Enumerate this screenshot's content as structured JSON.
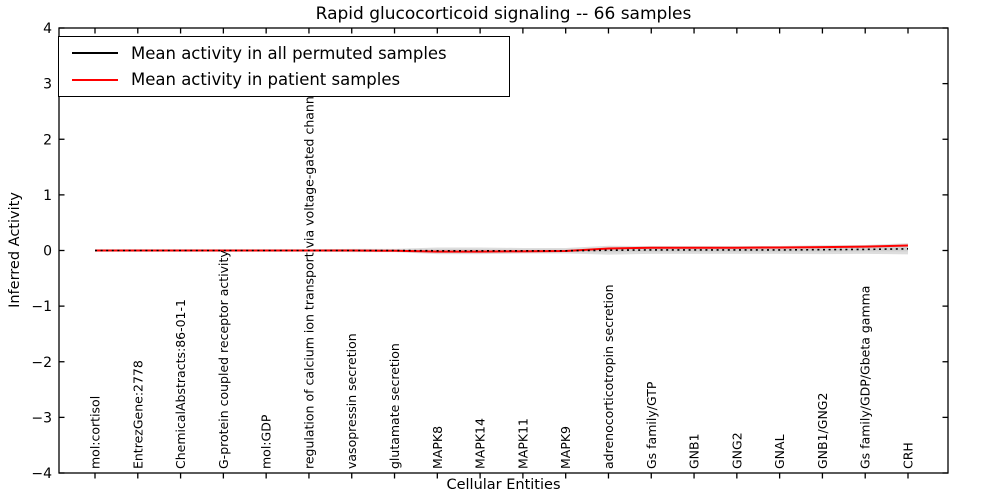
{
  "chart_data": {
    "type": "line",
    "title": "Rapid glucocorticoid signaling -- 66 samples",
    "xlabel": "Cellular Entities",
    "ylabel": "Inferred Activity",
    "ylim": [
      -4,
      4
    ],
    "yticks": [
      4,
      3,
      2,
      1,
      0,
      -1,
      -2,
      -3,
      -4
    ],
    "grid": false,
    "legend_position": "upper left",
    "categories": [
      "mol:cortisol",
      "EntrezGene:2778",
      "ChemicalAbstracts:86-01-1",
      "G-protein coupled receptor activity",
      "mol:GDP",
      "regulation of calcium ion transport via voltage-gated channel",
      "vasopressin secretion",
      "glutamate secretion",
      "MAPK8",
      "MAPK14",
      "MAPK11",
      "MAPK9",
      "adrenocorticotropin secretion",
      "Gs family/GTP",
      "GNB1",
      "GNG2",
      "GNAL",
      "GNB1/GNG2",
      "Gs family/GDP/Gbeta gamma",
      "CRH"
    ],
    "series": [
      {
        "name": "Mean activity in all permuted samples",
        "color": "#000000",
        "linestyle": "dotted",
        "values": [
          0,
          0,
          0,
          0,
          0,
          0,
          0,
          0,
          -0.005,
          -0.005,
          -0.005,
          -0.005,
          0.005,
          0.01,
          0.01,
          0.01,
          0.01,
          0.015,
          0.02,
          0.03
        ]
      },
      {
        "name": "Mean activity in patient samples",
        "color": "#ff0000",
        "linestyle": "solid",
        "values": [
          0,
          0,
          0,
          0,
          0,
          0,
          0,
          -0.005,
          -0.02,
          -0.02,
          -0.015,
          -0.01,
          0.035,
          0.05,
          0.05,
          0.05,
          0.055,
          0.06,
          0.07,
          0.09
        ]
      }
    ],
    "band": {
      "color": "#d9d9d9",
      "half_widths": [
        0.02,
        0.02,
        0.02,
        0.02,
        0.02,
        0.02,
        0.03,
        0.03,
        0.06,
        0.06,
        0.05,
        0.05,
        0.08,
        0.07,
        0.07,
        0.07,
        0.07,
        0.08,
        0.08,
        0.1
      ]
    }
  }
}
